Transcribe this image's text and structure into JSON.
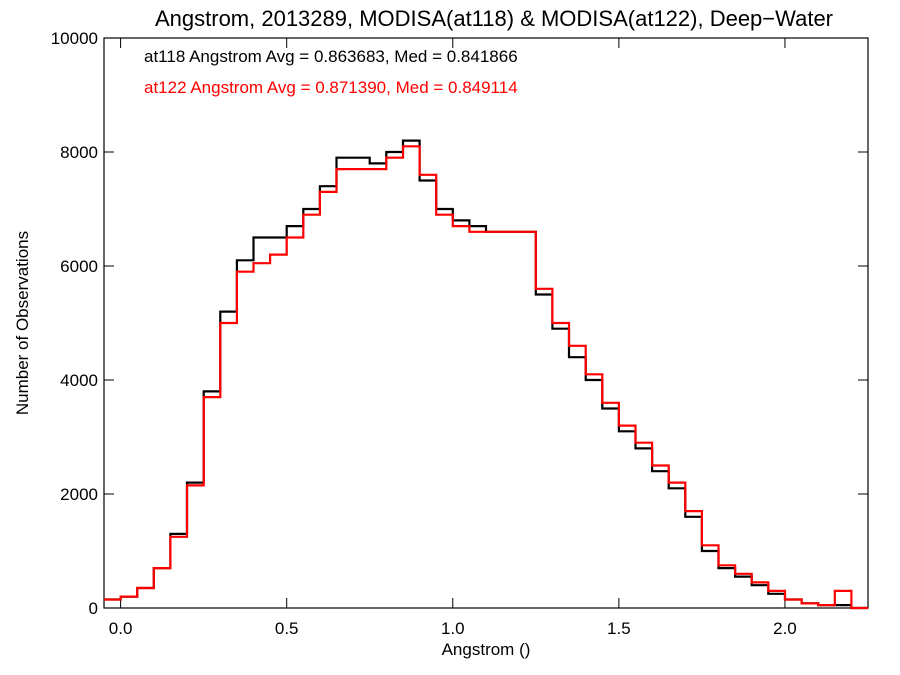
{
  "chart_data": {
    "type": "line",
    "title": "Angstrom, 2013289, MODISA(at118) & MODISA(at122), Deep−Water",
    "xlabel": "Angstrom ()",
    "ylabel": "Number of Observations",
    "xlim": [
      -0.05,
      2.25
    ],
    "ylim": [
      0,
      10000
    ],
    "xticks": [
      "0.0",
      "0.5",
      "1.0",
      "1.5",
      "2.0"
    ],
    "yticks": [
      "0",
      "2000",
      "4000",
      "6000",
      "8000",
      "10000"
    ],
    "annotations": [
      {
        "text": "at118 Angstrom Avg = 0.863683, Med = 0.841866",
        "color": "#000000"
      },
      {
        "text": "at122 Angstrom Avg = 0.871390, Med = 0.849114",
        "color": "#ff0000"
      }
    ],
    "series": [
      {
        "color": "#000000",
        "x": [
          -0.05,
          0.0,
          0.05,
          0.1,
          0.15,
          0.2,
          0.25,
          0.3,
          0.35,
          0.4,
          0.45,
          0.5,
          0.55,
          0.6,
          0.65,
          0.7,
          0.75,
          0.8,
          0.85,
          0.9,
          0.95,
          1.0,
          1.05,
          1.1,
          1.15,
          1.2,
          1.25,
          1.3,
          1.35,
          1.4,
          1.45,
          1.5,
          1.55,
          1.6,
          1.65,
          1.7,
          1.75,
          1.8,
          1.85,
          1.9,
          1.95,
          2.0,
          2.05,
          2.1,
          2.15,
          2.2,
          2.25
        ],
        "values": [
          150,
          200,
          350,
          700,
          1300,
          2200,
          3800,
          5200,
          6100,
          6500,
          6500,
          6700,
          7000,
          7400,
          7900,
          7900,
          7800,
          8000,
          8200,
          7500,
          7000,
          6800,
          6700,
          6600,
          6600,
          6600,
          5500,
          4900,
          4400,
          4000,
          3500,
          3100,
          2800,
          2400,
          2100,
          1600,
          1000,
          700,
          550,
          400,
          250,
          150,
          80,
          50,
          50,
          0,
          0
        ]
      },
      {
        "color": "#ff0000",
        "x": [
          -0.05,
          0.0,
          0.05,
          0.1,
          0.15,
          0.2,
          0.25,
          0.3,
          0.35,
          0.4,
          0.45,
          0.5,
          0.55,
          0.6,
          0.65,
          0.7,
          0.75,
          0.8,
          0.85,
          0.9,
          0.95,
          1.0,
          1.05,
          1.1,
          1.15,
          1.2,
          1.25,
          1.3,
          1.35,
          1.4,
          1.45,
          1.5,
          1.55,
          1.6,
          1.65,
          1.7,
          1.75,
          1.8,
          1.85,
          1.9,
          1.95,
          2.0,
          2.05,
          2.1,
          2.15,
          2.2,
          2.25
        ],
        "values": [
          150,
          200,
          350,
          700,
          1250,
          2150,
          3700,
          5000,
          5900,
          6050,
          6200,
          6500,
          6900,
          7300,
          7700,
          7700,
          7700,
          7900,
          8100,
          7600,
          6900,
          6700,
          6600,
          6600,
          6600,
          6600,
          5600,
          5000,
          4600,
          4100,
          3600,
          3200,
          2900,
          2500,
          2200,
          1700,
          1100,
          750,
          600,
          450,
          300,
          150,
          80,
          50,
          300,
          0,
          0
        ]
      }
    ]
  }
}
